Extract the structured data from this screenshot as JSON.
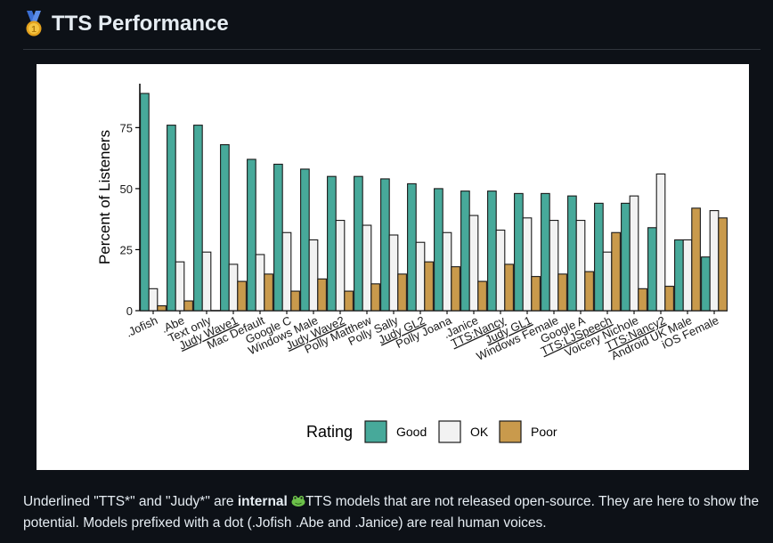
{
  "header": {
    "title": "TTS Performance",
    "icon": "medal-icon"
  },
  "note": {
    "part1": "Underlined \"TTS*\" and \"Judy*\" are ",
    "bold": "internal",
    "part2": "TTS models that are not released open-source. They are here to show the potential. Models prefixed with a dot (.Jofish .Abe and .Janice) are real human voices.",
    "icon": "frog-icon"
  },
  "colors": {
    "Good": "#47a99a",
    "OK": "#f2f2f2",
    "Poor": "#c99a4c",
    "page_bg": "#0d1117"
  },
  "chart_data": {
    "type": "bar",
    "ylabel": "Percent of Listeners",
    "ylim": [
      0,
      93
    ],
    "yticks": [
      0,
      25,
      50,
      75
    ],
    "categories": [
      ".Jofish",
      ".Abe",
      "Text only",
      "Judy Wave1",
      "Mac Default",
      "Google C",
      "Windows Male",
      "Judy Wave2",
      "Polly Matthew",
      "Polly Sally",
      "Judy GL2",
      "Polly Joana",
      ".Janice",
      "TTS:Nancy",
      "Judy GL1",
      "Windows Female",
      "Google A",
      "TTS:LJSpeech",
      "Voicery Nichole",
      "TTS:Nancy2",
      "Android UK Male",
      "iOS Female"
    ],
    "underlined": [
      "Judy Wave1",
      "Judy Wave2",
      "Judy GL2",
      "TTS:Nancy",
      "Judy GL1",
      "TTS:LJSpeech",
      "TTS:Nancy2"
    ],
    "series": [
      {
        "name": "Good",
        "values": [
          89,
          76,
          76,
          68,
          62,
          60,
          58,
          55,
          55,
          54,
          52,
          50,
          49,
          49,
          48,
          48,
          47,
          44,
          44,
          34,
          29,
          22
        ]
      },
      {
        "name": "OK",
        "values": [
          9,
          20,
          24,
          19,
          23,
          32,
          29,
          37,
          35,
          31,
          28,
          32,
          39,
          33,
          38,
          37,
          37,
          24,
          47,
          56,
          29,
          41
        ]
      },
      {
        "name": "Poor",
        "values": [
          2,
          4,
          0,
          12,
          15,
          8,
          13,
          8,
          11,
          15,
          20,
          18,
          12,
          19,
          14,
          15,
          16,
          32,
          9,
          10,
          42,
          38
        ]
      }
    ],
    "legend": {
      "title": "Rating",
      "entries": [
        "Good",
        "OK",
        "Poor"
      ],
      "position": "bottom"
    },
    "grid": false
  }
}
